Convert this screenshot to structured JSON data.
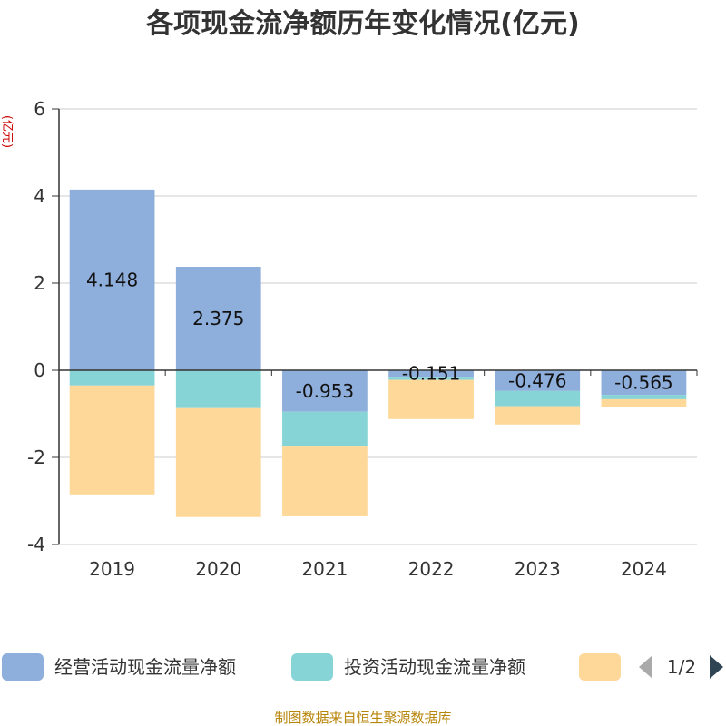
{
  "chart_data": {
    "type": "bar",
    "stacked": true,
    "title": "各项现金流净额历年变化情况(亿元)",
    "ylabel": "(亿元)",
    "xlabel": "",
    "categories": [
      "2019",
      "2020",
      "2021",
      "2022",
      "2023",
      "2024"
    ],
    "ylim": [
      -4,
      6
    ],
    "yticks": [
      -4,
      -2,
      0,
      2,
      4,
      6
    ],
    "grid": true,
    "legend_position": "bottom",
    "series": [
      {
        "name": "经营活动现金流量净额",
        "color": "#8eaedb",
        "values": [
          4.148,
          2.375,
          -0.953,
          -0.151,
          -0.476,
          -0.565
        ],
        "show_labels": true
      },
      {
        "name": "投资活动现金流量净额",
        "color": "#86d4d6",
        "values": [
          -0.35,
          -0.87,
          -0.8,
          -0.07,
          -0.35,
          -0.1
        ],
        "show_labels": false
      },
      {
        "name": "",
        "color": "#fdd899",
        "values": [
          -2.5,
          -2.5,
          -1.6,
          -0.9,
          -0.42,
          -0.18
        ],
        "show_labels": false
      }
    ]
  },
  "legend": {
    "page": "1/2"
  },
  "source": "制图数据来自恒生聚源数据库"
}
